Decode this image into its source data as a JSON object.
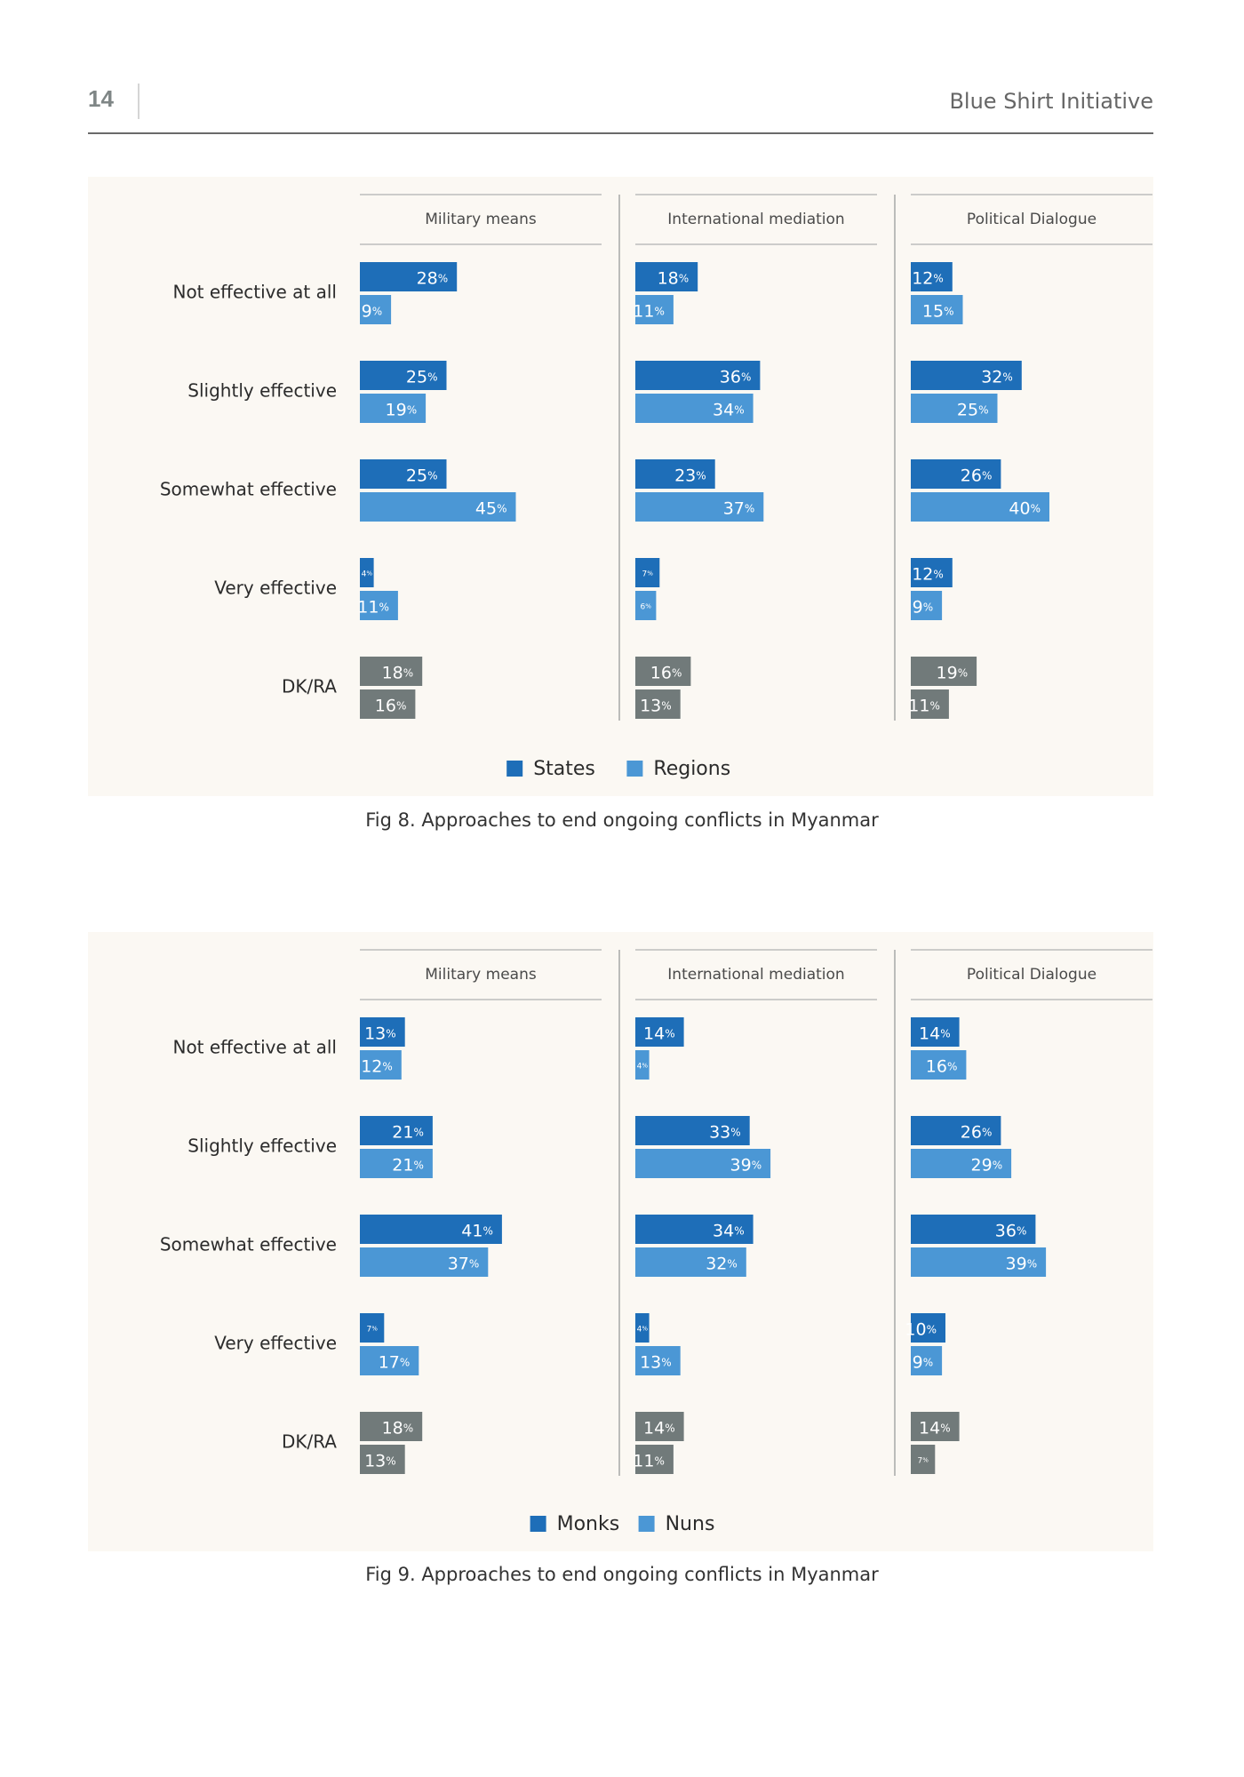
{
  "header": {
    "page_number": "14",
    "publication": "Blue Shirt Initiative"
  },
  "colors": {
    "primary": "#1e6eb8",
    "secondary": "#4b97d5",
    "dk": "#717a7a",
    "panel_bg": "#fbf8f3"
  },
  "figures": [
    {
      "caption": "Fig 8. Approaches to end ongoing conflicts in Myanmar"
    },
    {
      "caption": "Fig 9. Approaches to end ongoing conflicts in Myanmar"
    }
  ],
  "chart_data": [
    {
      "type": "bar",
      "orientation": "horizontal",
      "facets": [
        "Military means",
        "International mediation",
        "Political Dialogue"
      ],
      "categories": [
        "Not effective at all",
        "Slightly effective",
        "Somewhat effective",
        "Very effective",
        "DK/RA"
      ],
      "unit": "%",
      "legend_position": "bottom-center",
      "series": [
        {
          "name": "States",
          "values": [
            [
              28,
              25,
              25,
              4,
              18
            ],
            [
              18,
              36,
              23,
              7,
              16
            ],
            [
              12,
              32,
              26,
              12,
              19
            ]
          ]
        },
        {
          "name": "Regions",
          "values": [
            [
              9,
              19,
              45,
              11,
              16
            ],
            [
              11,
              34,
              37,
              6,
              13
            ],
            [
              15,
              25,
              40,
              9,
              11
            ]
          ]
        }
      ]
    },
    {
      "type": "bar",
      "orientation": "horizontal",
      "facets": [
        "Military means",
        "International mediation",
        "Political Dialogue"
      ],
      "categories": [
        "Not effective at all",
        "Slightly effective",
        "Somewhat effective",
        "Very effective",
        "DK/RA"
      ],
      "unit": "%",
      "legend_position": "bottom-center",
      "series": [
        {
          "name": "Monks",
          "values": [
            [
              13,
              21,
              41,
              7,
              18
            ],
            [
              14,
              33,
              34,
              4,
              14
            ],
            [
              14,
              26,
              36,
              10,
              14
            ]
          ]
        },
        {
          "name": "Nuns",
          "values": [
            [
              12,
              21,
              37,
              17,
              13
            ],
            [
              4,
              39,
              32,
              13,
              11
            ],
            [
              16,
              29,
              39,
              9,
              7
            ]
          ]
        }
      ]
    }
  ]
}
